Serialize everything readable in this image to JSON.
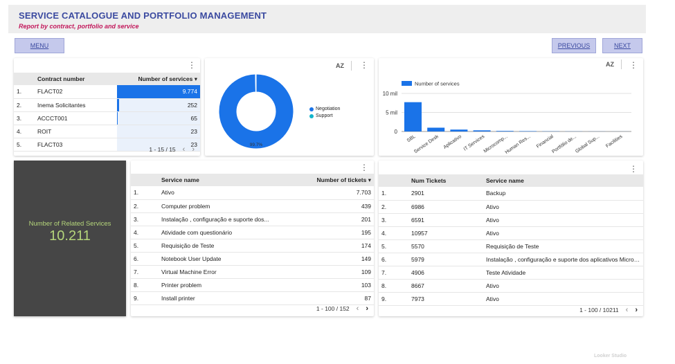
{
  "header": {
    "title": "SERVICE CATALOGUE AND PORTFOLIO MANAGEMENT",
    "subtitle": "Report by contract, portfolio and service"
  },
  "nav": {
    "menu": "MENU",
    "previous": "PREVIOUS",
    "next": "NEXT"
  },
  "contract_table": {
    "col1": "Contract number",
    "col2": "Number of services",
    "rows": [
      {
        "idx": "1.",
        "name": "FLACT02",
        "value": "9.774",
        "fraction": 1.0
      },
      {
        "idx": "2.",
        "name": "Inema Solicitantes",
        "value": "252",
        "fraction": 0.026
      },
      {
        "idx": "3.",
        "name": "ACCCT001",
        "value": "65",
        "fraction": 0.007
      },
      {
        "idx": "4.",
        "name": "ROIT",
        "value": "23",
        "fraction": 0.002
      },
      {
        "idx": "5.",
        "name": "FLACT03",
        "value": "23",
        "fraction": 0.002
      }
    ],
    "pager": "1 - 15 / 15"
  },
  "donut": {
    "sort_icon": "AZ",
    "legend": [
      {
        "name": "Negotiation",
        "color": "#1a73e8"
      },
      {
        "name": "Support",
        "color": "#12b5cb"
      }
    ],
    "label": "99.7%"
  },
  "bar_card": {
    "sort_icon": "AZ"
  },
  "chart_data": [
    {
      "type": "pie",
      "categories": [
        "Negotiation",
        "Support"
      ],
      "values": [
        99.7,
        0.3
      ],
      "colors": [
        "#1a73e8",
        "#12b5cb"
      ],
      "legend": "right"
    },
    {
      "type": "bar",
      "series": [
        {
          "name": "Number of services",
          "values": [
            7.7,
            1.0,
            0.5,
            0.3,
            0.15,
            0.1,
            0.05,
            0.03,
            0.02,
            0.01
          ]
        }
      ],
      "categories": [
        "SBL",
        "Service Desk",
        "Aplicativo",
        "IT Services",
        "Microcomp...",
        "Human Res...",
        "Financial",
        "Portfólio de...",
        "Global Sup...",
        "Facilities"
      ],
      "ylim": [
        0,
        10
      ],
      "yticks": [
        "0",
        "5 mil",
        "10 mil"
      ],
      "color": "#1a73e8",
      "legend": "top-left",
      "grid": true
    }
  ],
  "kpi": {
    "label": "Number of Related Services",
    "value": "10.211"
  },
  "service_table": {
    "col1": "Service name",
    "col2": "Number of tickets",
    "rows": [
      {
        "idx": "1.",
        "name": "Ativo",
        "value": "7.703"
      },
      {
        "idx": "2.",
        "name": "Computer problem",
        "value": "439"
      },
      {
        "idx": "3.",
        "name": "Instalação , configuração e suporte dos...",
        "value": "201"
      },
      {
        "idx": "4.",
        "name": "Atividade com questionário",
        "value": "195"
      },
      {
        "idx": "5.",
        "name": "Requisição de Teste",
        "value": "174"
      },
      {
        "idx": "6.",
        "name": "Notebook User Update",
        "value": "149"
      },
      {
        "idx": "7.",
        "name": "Virtual Machine Error",
        "value": "109"
      },
      {
        "idx": "8.",
        "name": "Printer problem",
        "value": "103"
      },
      {
        "idx": "9.",
        "name": "Install printer",
        "value": "87"
      }
    ],
    "pager": "1 - 100 / 152"
  },
  "ticket_table": {
    "col1": "Num Tickets",
    "col2": "Service name",
    "rows": [
      {
        "idx": "1.",
        "num": "2901",
        "name": "Backup"
      },
      {
        "idx": "2.",
        "num": "6986",
        "name": "Ativo"
      },
      {
        "idx": "3.",
        "num": "6591",
        "name": "Ativo"
      },
      {
        "idx": "4.",
        "num": "10957",
        "name": "Ativo"
      },
      {
        "idx": "5.",
        "num": "5570",
        "name": "Requisição de Teste"
      },
      {
        "idx": "6.",
        "num": "5979",
        "name": "Instalação , configuração e suporte dos aplicativos Microsoft ..."
      },
      {
        "idx": "7.",
        "num": "4906",
        "name": "Teste Atividade"
      },
      {
        "idx": "8.",
        "num": "8667",
        "name": "Ativo"
      },
      {
        "idx": "9.",
        "num": "7973",
        "name": "Ativo"
      }
    ],
    "pager": "1 - 100 / 10211"
  },
  "watermark": "Looker Studio"
}
